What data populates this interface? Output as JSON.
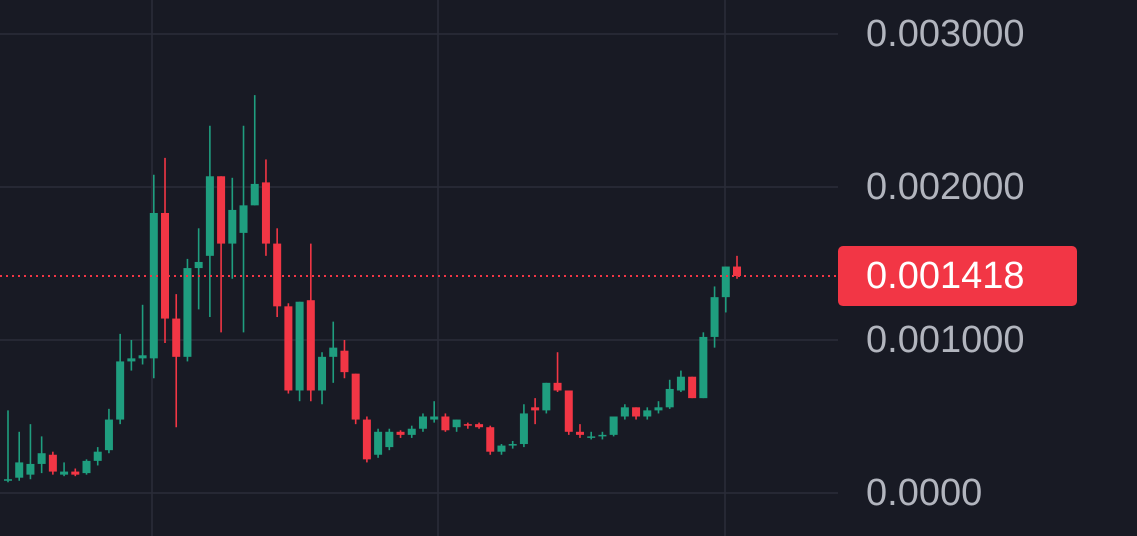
{
  "chart_data": {
    "type": "candlestick",
    "up_color": "#1f9e7f",
    "down_color": "#f23645",
    "open": [
      8e-05,
      0.0001,
      0.00012,
      0.00019,
      0.00025,
      0.00012,
      0.00014,
      0.00013,
      0.00021,
      0.00028,
      0.00048,
      0.00086,
      0.00088,
      0.00088,
      0.00183,
      0.00114,
      0.00089,
      0.00147,
      0.00155,
      0.00207,
      0.00163,
      0.0017,
      0.00188,
      0.00203,
      0.00163,
      0.00122,
      0.00067,
      0.00126,
      0.00067,
      0.00089,
      0.00093,
      0.00078,
      0.00048,
      0.00025,
      0.0003,
      0.0004,
      0.00038,
      0.00042,
      0.00048,
      0.0005,
      0.00043,
      0.00045,
      0.00045,
      0.00043,
      0.00027,
      0.00031,
      0.00032,
      0.00056,
      0.00054,
      0.00072,
      0.00067,
      0.0004,
      0.00037,
      0.00037,
      0.00038,
      0.0005,
      0.00056,
      0.0005,
      0.00054,
      0.00056,
      0.00067,
      0.00076,
      0.00062,
      0.00102,
      0.00128,
      0.00148
    ],
    "high": [
      0.00054,
      0.0004,
      0.00045,
      0.00037,
      0.00027,
      0.0002,
      0.00016,
      0.00022,
      0.0003,
      0.00055,
      0.00104,
      0.001,
      0.00123,
      0.00208,
      0.00219,
      0.0013,
      0.00153,
      0.00173,
      0.0024,
      0.00207,
      0.00206,
      0.0024,
      0.0026,
      0.00218,
      0.00173,
      0.00124,
      0.00125,
      0.00163,
      0.00092,
      0.00112,
      0.001,
      0.00078,
      0.0005,
      0.00042,
      0.00042,
      0.00041,
      0.00044,
      0.00052,
      0.0006,
      0.00052,
      0.00048,
      0.00046,
      0.00046,
      0.00044,
      0.00032,
      0.00034,
      0.00058,
      0.00062,
      0.00072,
      0.00092,
      0.00067,
      0.00045,
      0.0004,
      0.0004,
      0.0005,
      0.00058,
      0.00056,
      0.00056,
      0.0006,
      0.00074,
      0.0008,
      0.00076,
      0.00105,
      0.00135,
      0.00148,
      0.00155
    ],
    "low": [
      7e-05,
      8e-05,
      9e-05,
      0.00013,
      0.00012,
      0.00011,
      0.00011,
      0.00012,
      0.00018,
      0.00026,
      0.00045,
      0.0008,
      0.00084,
      0.00075,
      0.00098,
      0.00043,
      0.00086,
      0.0012,
      0.00115,
      0.00105,
      0.0014,
      0.00105,
      0.00188,
      0.00155,
      0.00115,
      0.00065,
      0.0006,
      0.0006,
      0.00058,
      0.00072,
      0.00075,
      0.00045,
      0.0002,
      0.00023,
      0.00028,
      0.00036,
      0.00036,
      0.0004,
      0.00046,
      0.0004,
      0.0004,
      0.00042,
      0.00042,
      0.00025,
      0.00025,
      0.00029,
      0.0003,
      0.00045,
      0.00052,
      0.00066,
      0.00038,
      0.00036,
      0.00035,
      0.00035,
      0.00037,
      0.00048,
      0.00048,
      0.00048,
      0.00052,
      0.00055,
      0.00066,
      0.00062,
      0.00062,
      0.00095,
      0.00118,
      0.0014
    ],
    "close": [
      9e-05,
      0.0002,
      0.00019,
      0.00026,
      0.00014,
      0.00014,
      0.00012,
      0.00021,
      0.00027,
      0.00048,
      0.00086,
      0.00088,
      0.0009,
      0.00183,
      0.00114,
      0.00089,
      0.00147,
      0.00151,
      0.00207,
      0.00163,
      0.00185,
      0.00188,
      0.00202,
      0.00163,
      0.00122,
      0.00067,
      0.00125,
      0.00067,
      0.00089,
      0.00095,
      0.00079,
      0.00048,
      0.00022,
      0.0004,
      0.0004,
      0.00038,
      0.00042,
      0.0005,
      0.0005,
      0.00041,
      0.00048,
      0.00044,
      0.00043,
      0.00027,
      0.00031,
      0.00032,
      0.00052,
      0.00054,
      0.00072,
      0.00067,
      0.0004,
      0.00038,
      0.00037,
      0.00038,
      0.0005,
      0.00056,
      0.0005,
      0.00054,
      0.00056,
      0.00068,
      0.00076,
      0.00062,
      0.00102,
      0.00128,
      0.00148,
      0.001418
    ],
    "last_price": 0.001418,
    "ylim": [
      -0.000281,
      0.003222
    ],
    "yticks": [
      {
        "value": 0,
        "label": "0.0000"
      },
      {
        "value": 0.001,
        "label": "0.001000"
      },
      {
        "value": 0.002,
        "label": "0.002000"
      },
      {
        "value": 0.003,
        "label": "0.003000"
      }
    ],
    "grid": true
  }
}
